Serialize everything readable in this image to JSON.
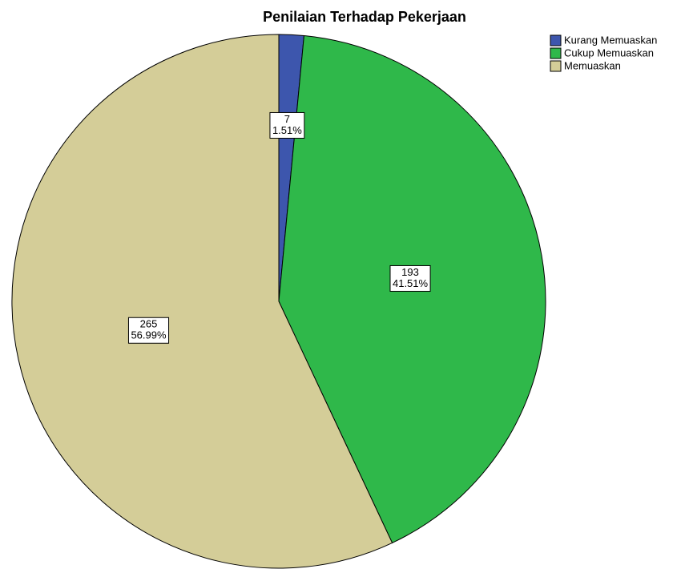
{
  "chart_data": {
    "type": "pie",
    "title": "Penilaian Terhadap Pekerjaan",
    "categories": [
      "Kurang Memuaskan",
      "Cukup Memuaskan",
      "Memuaskan"
    ],
    "values": [
      7,
      193,
      265
    ],
    "percentages": [
      1.51,
      41.51,
      56.99
    ],
    "percentage_labels": [
      "1.51%",
      "41.51%",
      "56.99%"
    ],
    "colors": [
      "#3d56ad",
      "#2fb84a",
      "#d4cd98"
    ],
    "legend": "top-right"
  }
}
